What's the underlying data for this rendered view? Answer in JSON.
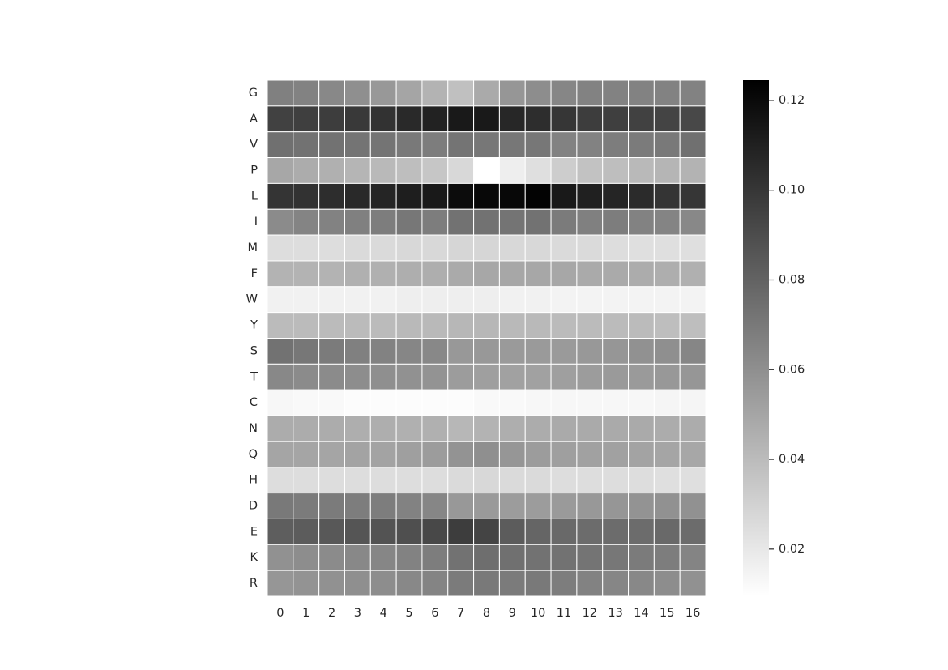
{
  "chart_data": {
    "type": "heatmap",
    "title": "",
    "xlabel": "",
    "ylabel": "",
    "x_labels": [
      "0",
      "1",
      "2",
      "3",
      "4",
      "5",
      "6",
      "7",
      "8",
      "9",
      "10",
      "11",
      "12",
      "13",
      "14",
      "15",
      "16"
    ],
    "y_labels": [
      "G",
      "A",
      "V",
      "P",
      "L",
      "I",
      "M",
      "F",
      "W",
      "Y",
      "S",
      "T",
      "C",
      "N",
      "Q",
      "H",
      "D",
      "E",
      "K",
      "R"
    ],
    "colormap": [
      "#ffffff",
      "#000000"
    ],
    "vmin": 0.0095,
    "vmax": 0.1245,
    "colorbar_ticks": [
      0.02,
      0.04,
      0.06,
      0.08,
      0.1,
      0.12
    ],
    "colorbar_tick_labels": [
      "0.02",
      "0.04",
      "0.06",
      "0.08",
      "0.10",
      "0.12"
    ],
    "values": [
      [
        0.067,
        0.066,
        0.063,
        0.06,
        0.056,
        0.05,
        0.044,
        0.038,
        0.048,
        0.057,
        0.061,
        0.064,
        0.066,
        0.066,
        0.066,
        0.066,
        0.066
      ],
      [
        0.095,
        0.096,
        0.097,
        0.099,
        0.102,
        0.106,
        0.109,
        0.113,
        0.113,
        0.107,
        0.104,
        0.1,
        0.097,
        0.096,
        0.095,
        0.094,
        0.092
      ],
      [
        0.074,
        0.073,
        0.073,
        0.072,
        0.072,
        0.07,
        0.068,
        0.072,
        0.071,
        0.071,
        0.071,
        0.066,
        0.066,
        0.068,
        0.069,
        0.07,
        0.074
      ],
      [
        0.049,
        0.047,
        0.045,
        0.043,
        0.041,
        0.039,
        0.035,
        0.027,
        0.0095,
        0.017,
        0.024,
        0.032,
        0.037,
        0.039,
        0.041,
        0.043,
        0.044
      ],
      [
        0.101,
        0.102,
        0.104,
        0.106,
        0.108,
        0.111,
        0.113,
        0.119,
        0.121,
        0.121,
        0.123,
        0.113,
        0.11,
        0.108,
        0.105,
        0.101,
        0.1
      ],
      [
        0.062,
        0.065,
        0.066,
        0.067,
        0.068,
        0.071,
        0.068,
        0.073,
        0.073,
        0.072,
        0.073,
        0.069,
        0.067,
        0.068,
        0.066,
        0.065,
        0.063
      ],
      [
        0.025,
        0.025,
        0.025,
        0.026,
        0.026,
        0.027,
        0.027,
        0.028,
        0.028,
        0.027,
        0.027,
        0.026,
        0.026,
        0.025,
        0.024,
        0.024,
        0.024
      ],
      [
        0.044,
        0.044,
        0.044,
        0.045,
        0.045,
        0.046,
        0.046,
        0.048,
        0.049,
        0.049,
        0.049,
        0.049,
        0.048,
        0.048,
        0.047,
        0.046,
        0.045
      ],
      [
        0.016,
        0.016,
        0.016,
        0.016,
        0.016,
        0.017,
        0.017,
        0.017,
        0.017,
        0.016,
        0.016,
        0.015,
        0.015,
        0.015,
        0.015,
        0.015,
        0.015
      ],
      [
        0.04,
        0.04,
        0.04,
        0.04,
        0.04,
        0.041,
        0.041,
        0.042,
        0.042,
        0.041,
        0.041,
        0.04,
        0.04,
        0.04,
        0.04,
        0.039,
        0.039
      ],
      [
        0.073,
        0.071,
        0.069,
        0.067,
        0.066,
        0.064,
        0.063,
        0.056,
        0.056,
        0.055,
        0.055,
        0.055,
        0.056,
        0.057,
        0.059,
        0.06,
        0.064
      ],
      [
        0.063,
        0.062,
        0.062,
        0.061,
        0.06,
        0.059,
        0.058,
        0.054,
        0.053,
        0.052,
        0.052,
        0.053,
        0.054,
        0.055,
        0.055,
        0.056,
        0.057
      ],
      [
        0.013,
        0.012,
        0.012,
        0.011,
        0.011,
        0.011,
        0.011,
        0.011,
        0.012,
        0.012,
        0.013,
        0.013,
        0.013,
        0.013,
        0.013,
        0.014,
        0.014
      ],
      [
        0.047,
        0.047,
        0.047,
        0.046,
        0.046,
        0.045,
        0.045,
        0.042,
        0.044,
        0.046,
        0.047,
        0.048,
        0.048,
        0.048,
        0.048,
        0.047,
        0.047
      ],
      [
        0.05,
        0.05,
        0.05,
        0.051,
        0.051,
        0.053,
        0.054,
        0.058,
        0.06,
        0.057,
        0.054,
        0.053,
        0.052,
        0.052,
        0.051,
        0.05,
        0.049
      ],
      [
        0.025,
        0.025,
        0.025,
        0.025,
        0.025,
        0.025,
        0.025,
        0.026,
        0.027,
        0.026,
        0.026,
        0.025,
        0.025,
        0.025,
        0.025,
        0.024,
        0.024
      ],
      [
        0.07,
        0.069,
        0.069,
        0.068,
        0.068,
        0.066,
        0.064,
        0.056,
        0.055,
        0.054,
        0.054,
        0.055,
        0.056,
        0.057,
        0.058,
        0.059,
        0.059
      ],
      [
        0.082,
        0.083,
        0.085,
        0.086,
        0.087,
        0.089,
        0.092,
        0.097,
        0.094,
        0.083,
        0.079,
        0.077,
        0.076,
        0.076,
        0.076,
        0.077,
        0.076
      ],
      [
        0.059,
        0.061,
        0.062,
        0.063,
        0.064,
        0.066,
        0.068,
        0.073,
        0.075,
        0.074,
        0.073,
        0.073,
        0.072,
        0.071,
        0.069,
        0.068,
        0.065
      ],
      [
        0.057,
        0.058,
        0.059,
        0.06,
        0.061,
        0.063,
        0.065,
        0.069,
        0.07,
        0.069,
        0.07,
        0.068,
        0.066,
        0.064,
        0.063,
        0.061,
        0.059
      ]
    ]
  }
}
